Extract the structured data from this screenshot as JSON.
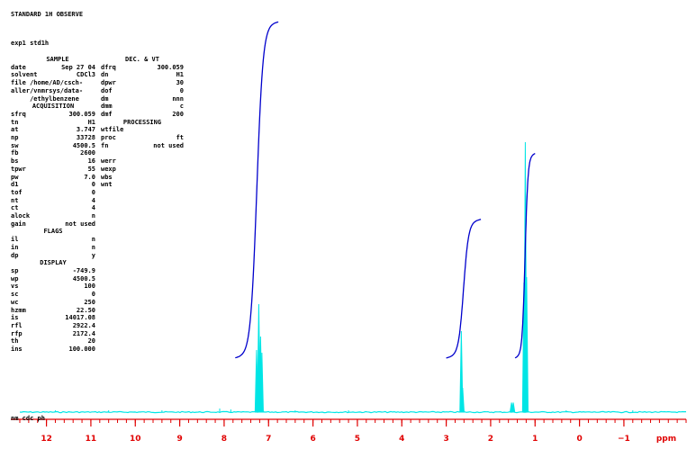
{
  "header": {
    "title": "STANDARD 1H OBSERVE",
    "experiment": "exp1  std1h"
  },
  "params_left": [
    {
      "type": "hdr",
      "label": "SAMPLE",
      "cls": "sample"
    },
    {
      "k": "date",
      "v": "Sep 27 04"
    },
    {
      "k": "solvent",
      "v": "CDCl3"
    },
    {
      "k": "file /home/AD/csch-",
      "v": ""
    },
    {
      "k": "aller/vnmrsys/data-",
      "v": ""
    },
    {
      "k": "     /ethylbenzene",
      "v": ""
    },
    {
      "type": "hdr",
      "label": "ACQUISITION"
    },
    {
      "k": "sfrq",
      "v": "300.059"
    },
    {
      "k": "tn",
      "v": "H1"
    },
    {
      "k": "at",
      "v": "3.747"
    },
    {
      "k": "np",
      "v": "33728"
    },
    {
      "k": "sw",
      "v": "4500.5"
    },
    {
      "k": "fb",
      "v": "2600"
    },
    {
      "k": "bs",
      "v": "16"
    },
    {
      "k": "tpwr",
      "v": "55"
    },
    {
      "k": "pw",
      "v": "7.0"
    },
    {
      "k": "d1",
      "v": "0"
    },
    {
      "k": "tof",
      "v": "0"
    },
    {
      "k": "nt",
      "v": "4"
    },
    {
      "k": "ct",
      "v": "4"
    },
    {
      "k": "alock",
      "v": "n"
    },
    {
      "k": "gain",
      "v": "not used"
    },
    {
      "type": "hdr",
      "label": "FLAGS"
    },
    {
      "k": "il",
      "v": "n"
    },
    {
      "k": "in",
      "v": "n"
    },
    {
      "k": "dp",
      "v": "y"
    },
    {
      "type": "hdr",
      "label": "DISPLAY"
    },
    {
      "k": "sp",
      "v": "-749.9"
    },
    {
      "k": "wp",
      "v": "4500.5"
    },
    {
      "k": "vs",
      "v": "100"
    },
    {
      "k": "sc",
      "v": "0"
    },
    {
      "k": "wc",
      "v": "250"
    },
    {
      "k": "hzmm",
      "v": "22.50"
    },
    {
      "k": "is",
      "v": "14017.08"
    },
    {
      "k": "rfl",
      "v": "2922.4"
    },
    {
      "k": "rfp",
      "v": "2172.4"
    },
    {
      "k": "th",
      "v": "20"
    },
    {
      "k": "ins",
      "v": "100.000"
    }
  ],
  "params_right": [
    {
      "type": "hdr",
      "label": "DEC. & VT"
    },
    {
      "k": "dfrq",
      "v": "300.059"
    },
    {
      "k": "dn",
      "v": "H1"
    },
    {
      "k": "dpwr",
      "v": "30"
    },
    {
      "k": "dof",
      "v": "0"
    },
    {
      "k": "dm",
      "v": "nnn"
    },
    {
      "k": "dmm",
      "v": "c"
    },
    {
      "k": "dmf",
      "v": "200"
    },
    {
      "type": "hdr",
      "label": "PROCESSING"
    },
    {
      "k": "wtfile",
      "v": ""
    },
    {
      "k": "proc",
      "v": "ft"
    },
    {
      "k": "fn",
      "v": "not used"
    },
    {
      "type": "blank"
    },
    {
      "k": "werr",
      "v": ""
    },
    {
      "k": "wexp",
      "v": ""
    },
    {
      "k": "wbs",
      "v": ""
    },
    {
      "k": "wnt",
      "v": ""
    }
  ],
  "footer": {
    "command_line": "nm  cdc  ph"
  },
  "colors": {
    "spectrum": "#00e5e5",
    "integral": "#0000cc",
    "axis": "#e00000"
  },
  "chart_data": {
    "type": "line",
    "xlabel": "ppm",
    "xlim": [
      12.6,
      -2.4
    ],
    "x_reversed": true,
    "major_ticks": [
      12,
      11,
      10,
      9,
      8,
      7,
      6,
      5,
      4,
      3,
      2,
      1,
      0,
      -1
    ],
    "tick_labels": [
      "12",
      "11",
      "10",
      "9",
      "8",
      "7",
      "6",
      "5",
      "4",
      "3",
      "2",
      "1",
      "0",
      "−1"
    ],
    "series": [
      {
        "peaks": [
          {
            "ppm": 7.27,
            "rel_height": 0.23
          },
          {
            "ppm": 7.22,
            "rel_height": 0.4
          },
          {
            "ppm": 7.18,
            "rel_height": 0.28
          },
          {
            "ppm": 7.15,
            "rel_height": 0.22
          },
          {
            "ppm": 2.66,
            "rel_height": 0.3
          },
          {
            "ppm": 2.63,
            "rel_height": 0.09
          },
          {
            "ppm": 1.53,
            "rel_height": 0.035
          },
          {
            "ppm": 1.49,
            "rel_height": 0.035
          },
          {
            "ppm": 1.25,
            "rel_height": 0.48
          },
          {
            "ppm": 1.22,
            "rel_height": 1.0
          },
          {
            "ppm": 1.19,
            "rel_height": 0.5
          }
        ]
      }
    ],
    "integrals": [
      {
        "from": 7.75,
        "to": 6.78,
        "rise": 1.0
      },
      {
        "from": 3.0,
        "to": 2.22,
        "rise": 0.4
      },
      {
        "from": 1.45,
        "to": 1.0,
        "rise": 0.6
      }
    ]
  }
}
